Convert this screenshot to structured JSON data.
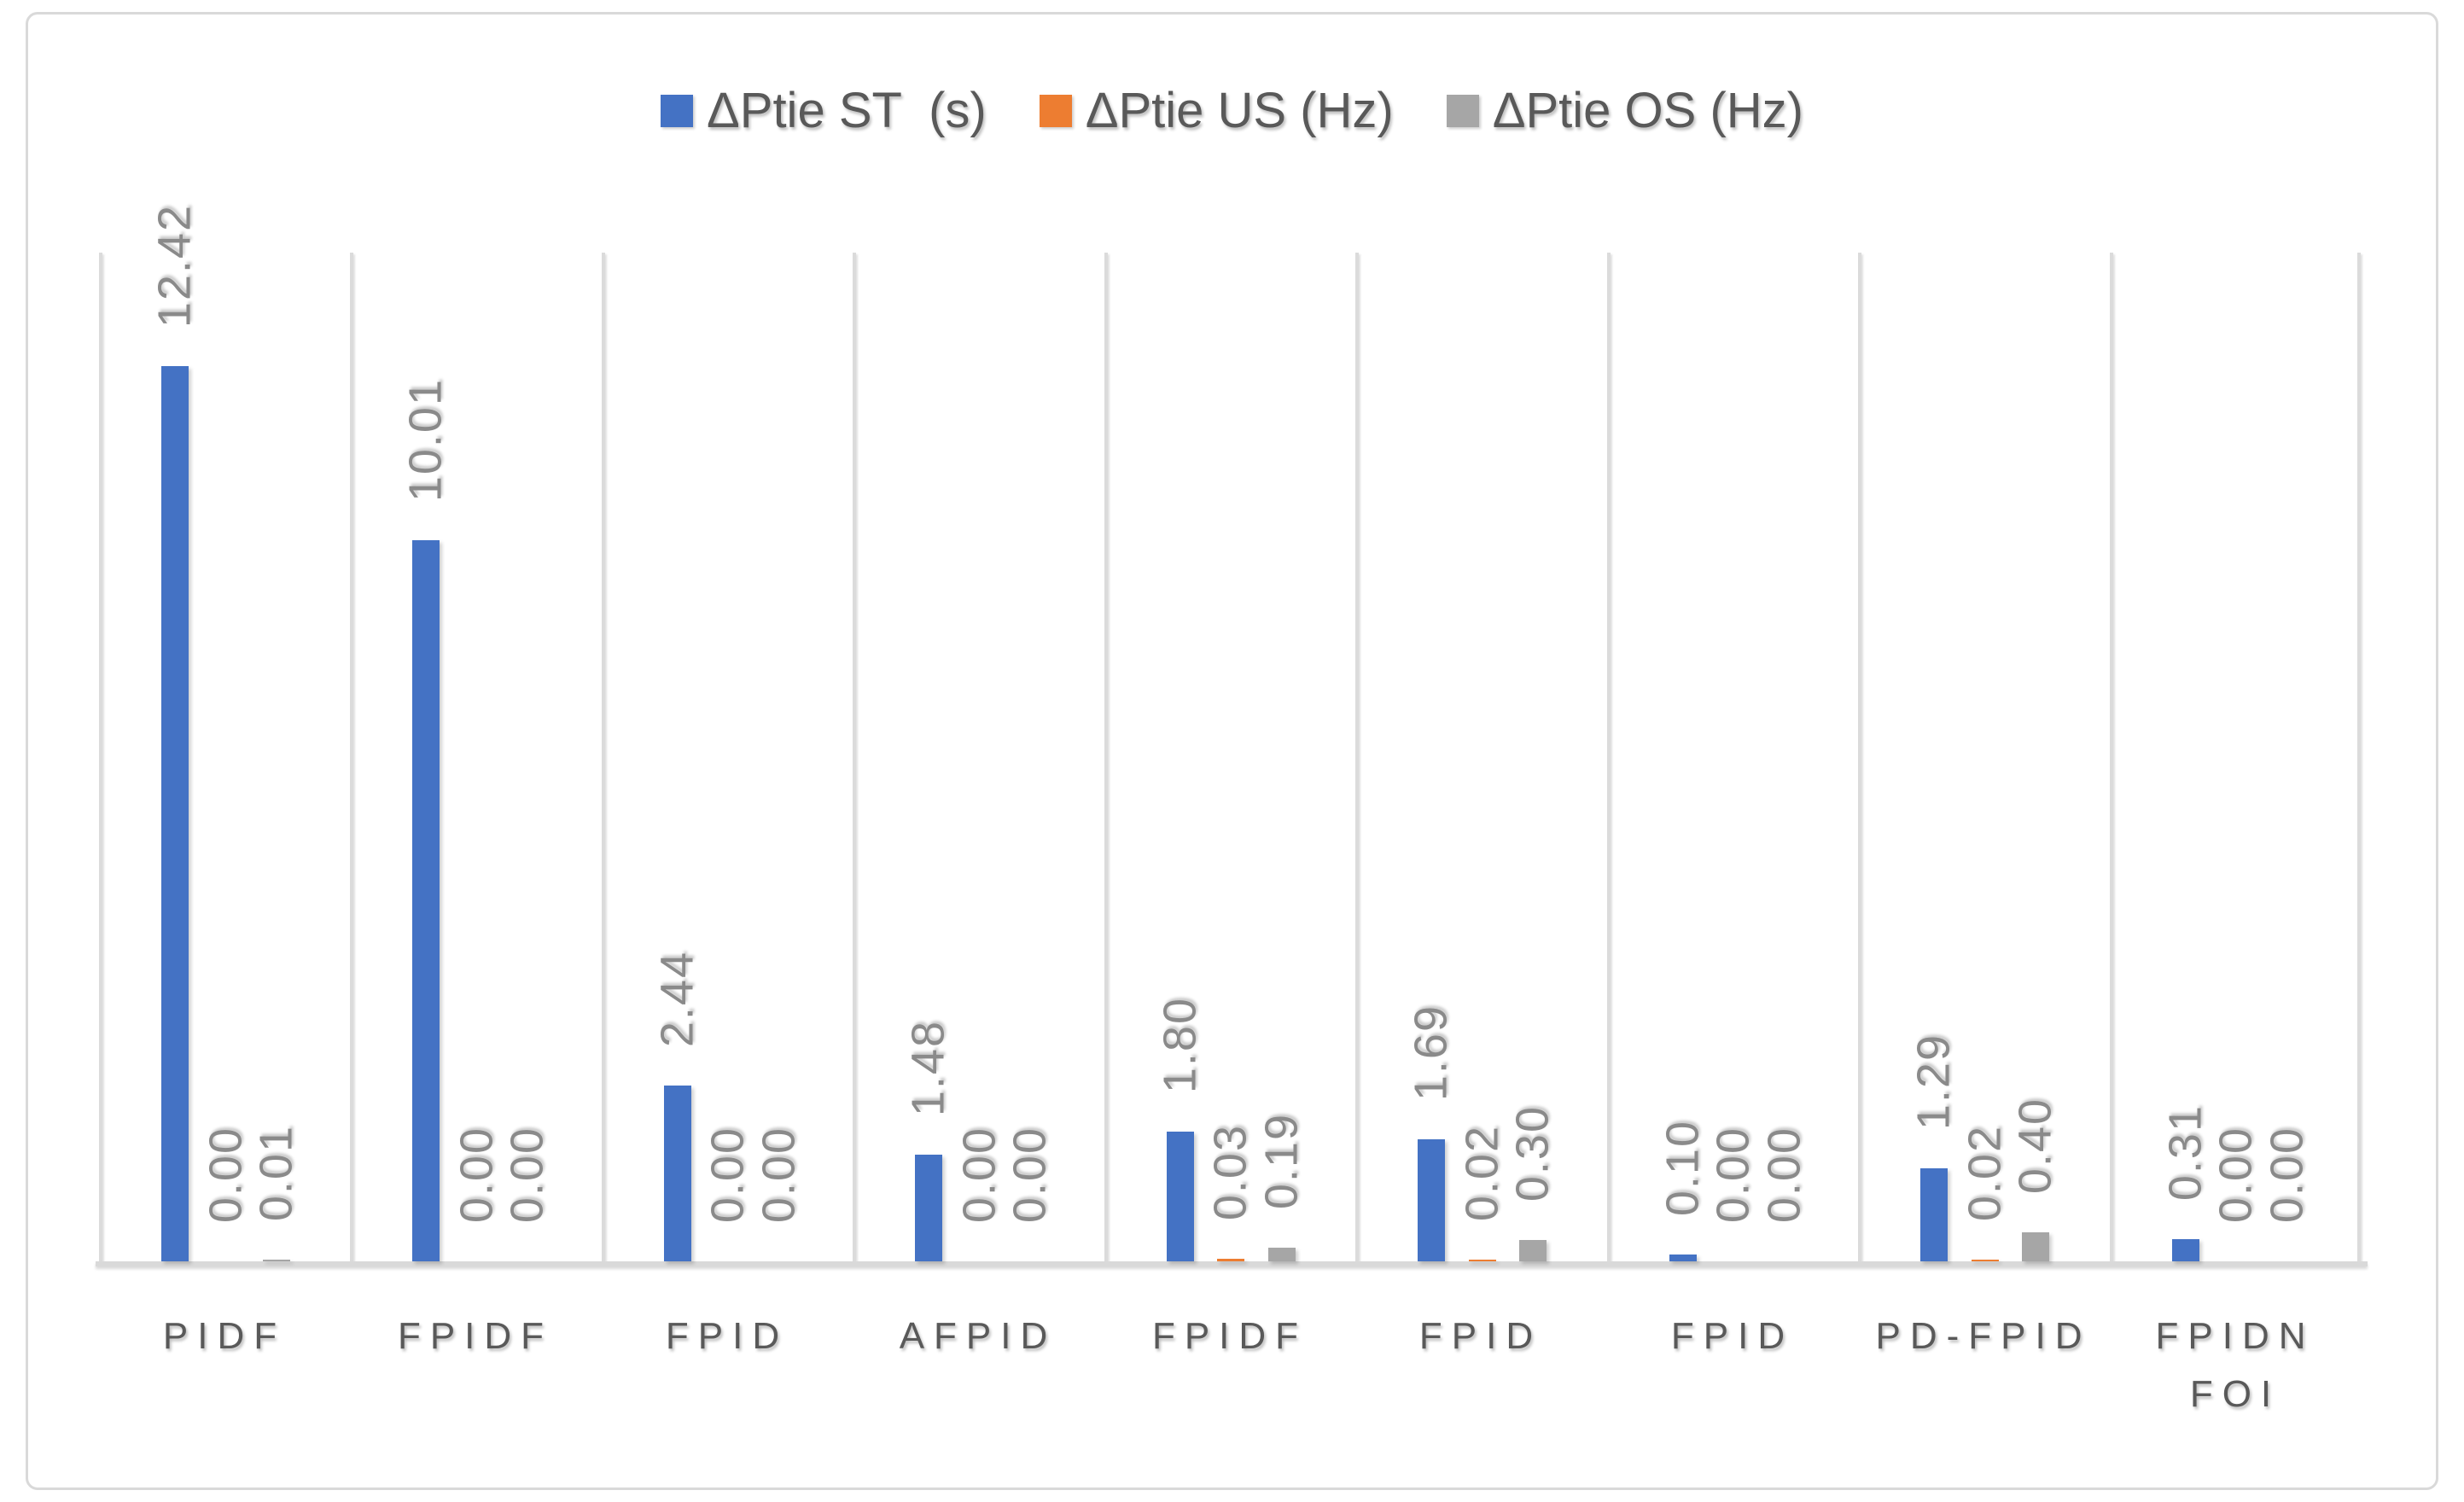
{
  "figure": {
    "background": "#FFFFFF",
    "border_color": "#D9D9D9"
  },
  "chart_data": {
    "type": "bar",
    "title": "",
    "xlabel": "",
    "ylabel": "",
    "categories": [
      "PIDF",
      "FPIDF",
      "FPID",
      "AFPID",
      "FPIDF",
      "FPID",
      "FPID",
      "PD-FPID",
      "FPIDN\nFOI"
    ],
    "series": [
      {
        "name": "ΔPtie ST  (s)",
        "color": "#4472C4",
        "values": [
          12.42,
          10.01,
          2.44,
          1.48,
          1.8,
          1.69,
          0.1,
          1.29,
          0.31
        ],
        "labels": [
          "12.42",
          "10.01",
          "2.44",
          "1.48",
          "1.80",
          "1.69",
          "0.10",
          "1.29",
          "0.31"
        ]
      },
      {
        "name": "ΔPtie US (Hz)",
        "color": "#ED7D31",
        "values": [
          0.0,
          0.0,
          0.0,
          0.0,
          0.03,
          0.02,
          0.0,
          0.02,
          0.0
        ],
        "labels": [
          "0.00",
          "0.00",
          "0.00",
          "0.00",
          "0.03",
          "0.02",
          "0.00",
          "0.02",
          "0.00"
        ]
      },
      {
        "name": "ΔPtie OS (Hz)",
        "color": "#A6A6A6",
        "values": [
          0.01,
          0.0,
          0.0,
          0.0,
          0.19,
          0.3,
          0.0,
          0.4,
          0.0
        ],
        "labels": [
          "0.01",
          "0.00",
          "0.00",
          "0.00",
          "0.19",
          "0.30",
          "0.00",
          "0.40",
          "0.00"
        ]
      }
    ],
    "ylim": [
      0,
      14
    ],
    "grid": "vertical category separators only, no horizontal gridlines, no value axis shown",
    "legend_position": "top-center",
    "data_label_rotation": 270,
    "data_label_color": "#8A8A8A",
    "category_label_color": "#595959",
    "gridline_color": "#DBDBDB"
  }
}
